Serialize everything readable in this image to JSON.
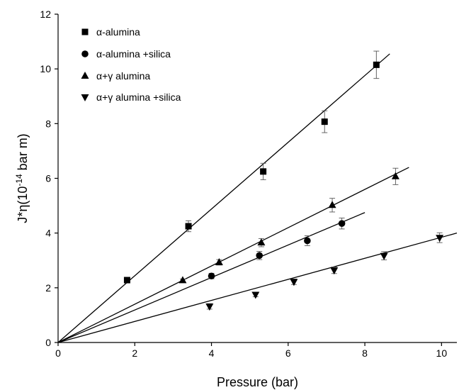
{
  "chart_data": {
    "type": "scatter",
    "xlabel": "Pressure (bar)",
    "ylabel_parts": {
      "base": "J*η(10",
      "exp": "-14",
      "unit": " bar m)"
    },
    "xlim": [
      0,
      10.4
    ],
    "ylim": [
      0,
      12
    ],
    "xticks": [
      0,
      2,
      4,
      6,
      8,
      10
    ],
    "yticks": [
      0,
      2,
      4,
      6,
      8,
      10,
      12
    ],
    "grid": false,
    "legend_position": "top-left",
    "series": [
      {
        "name": "α-alumina",
        "marker": "square",
        "points": [
          {
            "x": 1.8,
            "y": 2.28,
            "err": 0.1
          },
          {
            "x": 3.4,
            "y": 4.25,
            "err": 0.2
          },
          {
            "x": 5.35,
            "y": 6.25,
            "err": 0.3
          },
          {
            "x": 6.95,
            "y": 8.07,
            "err": 0.4
          },
          {
            "x": 8.3,
            "y": 10.15,
            "err": 0.5
          }
        ],
        "fit": {
          "x": [
            0,
            8.65
          ],
          "y": [
            0,
            10.55
          ]
        }
      },
      {
        "name": "α-alumina +silica",
        "marker": "circle",
        "points": [
          {
            "x": 4.0,
            "y": 2.43,
            "err": 0.1
          },
          {
            "x": 5.25,
            "y": 3.18,
            "err": 0.15
          },
          {
            "x": 6.5,
            "y": 3.72,
            "err": 0.18
          },
          {
            "x": 7.4,
            "y": 4.35,
            "err": 0.2
          }
        ],
        "fit": {
          "x": [
            0,
            8.0
          ],
          "y": [
            0,
            4.75
          ]
        }
      },
      {
        "name": "α+γ alumina",
        "marker": "triangle-up",
        "points": [
          {
            "x": 3.25,
            "y": 2.27,
            "err": 0.05
          },
          {
            "x": 4.2,
            "y": 2.93,
            "err": 0.1
          },
          {
            "x": 5.3,
            "y": 3.65,
            "err": 0.15
          },
          {
            "x": 7.15,
            "y": 5.02,
            "err": 0.25
          },
          {
            "x": 8.8,
            "y": 6.07,
            "err": 0.3
          }
        ],
        "fit": {
          "x": [
            0,
            9.15
          ],
          "y": [
            0,
            6.4
          ]
        }
      },
      {
        "name": "α+γ alumina +silica",
        "marker": "triangle-down",
        "points": [
          {
            "x": 3.95,
            "y": 1.32,
            "err": 0.1
          },
          {
            "x": 5.15,
            "y": 1.75,
            "err": 0.08
          },
          {
            "x": 6.15,
            "y": 2.22,
            "err": 0.1
          },
          {
            "x": 7.2,
            "y": 2.64,
            "err": 0.12
          },
          {
            "x": 8.5,
            "y": 3.17,
            "err": 0.15
          },
          {
            "x": 9.95,
            "y": 3.83,
            "err": 0.18
          }
        ],
        "fit": {
          "x": [
            0,
            10.4
          ],
          "y": [
            0,
            4.0
          ]
        }
      }
    ]
  }
}
